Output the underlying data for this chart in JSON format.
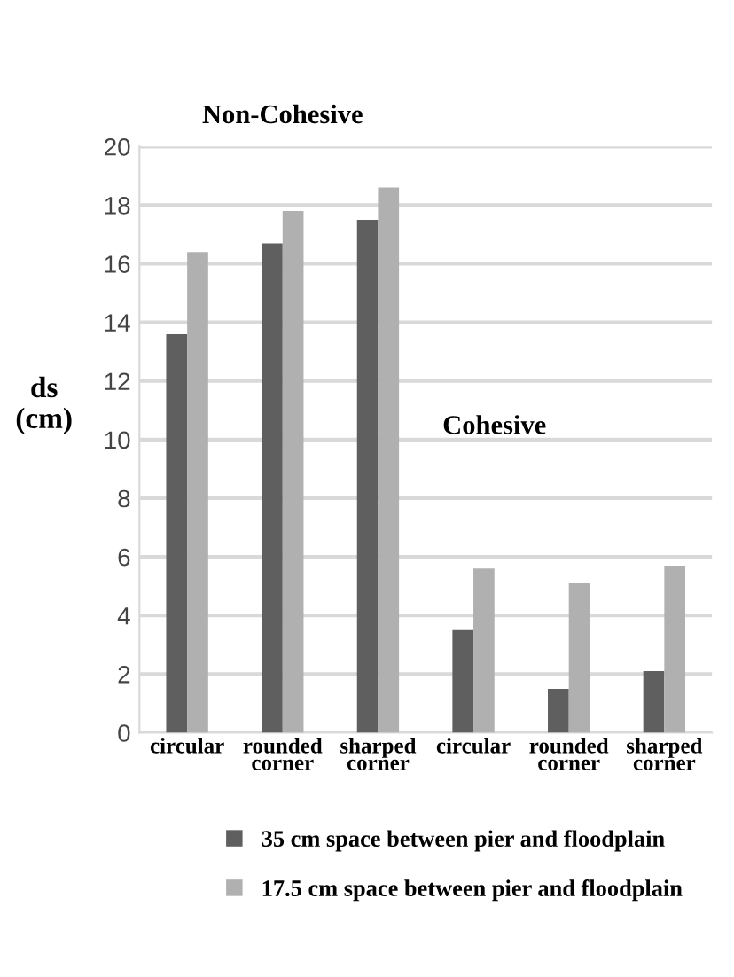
{
  "chart_data": {
    "type": "bar",
    "ylabel": "ds\n(cm)",
    "categories": [
      "circular",
      "rounded\ncorner",
      "sharped\ncorner",
      "circular",
      "rounded\ncorner",
      "sharped\ncorner"
    ],
    "series": [
      {
        "name": "35 cm space between pier and floodplain",
        "color": "#5f5f5f",
        "values": [
          13.6,
          16.7,
          17.5,
          3.5,
          1.5,
          2.1
        ]
      },
      {
        "name": "17.5 cm space between pier and floodplain",
        "color": "#b0b0b0",
        "values": [
          16.4,
          17.8,
          18.6,
          5.6,
          5.1,
          5.7
        ]
      }
    ],
    "ylim": [
      0,
      20
    ],
    "yticks": [
      0,
      2,
      4,
      6,
      8,
      10,
      12,
      14,
      16,
      18,
      20
    ],
    "grid": "y",
    "legend": "bottom",
    "annotations": [
      "Non-Cohesive",
      "Cohesive"
    ]
  }
}
